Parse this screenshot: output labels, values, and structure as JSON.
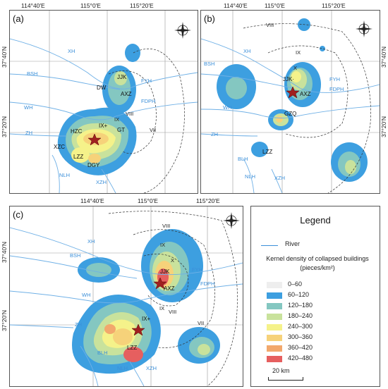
{
  "coordinates": {
    "lon": [
      "114°40′E",
      "115°0′E",
      "115°20′E"
    ],
    "lat": [
      "37°40′N",
      "37°20′N"
    ]
  },
  "panels": [
    {
      "label": "(a)"
    },
    {
      "label": "(b)"
    },
    {
      "label": "(c)"
    }
  ],
  "compass": {
    "n": "N",
    "s": "S",
    "e": "E",
    "w": "W"
  },
  "labels": {
    "towns": {
      "jjk": "JJK",
      "dw": "DW",
      "axz": "AXZ",
      "hzc": "HZC",
      "ix_plus": "IX+",
      "gt": "GT",
      "xzc": "XZC",
      "lzz": "LZZ",
      "dgy": "DGY",
      "gzq": "GZQ",
      "jjk_dot": "JJK·",
      "ix_plus_dot": "IX+"
    },
    "rivers": {
      "xh": "XH",
      "bsh": "BSH",
      "fyh": "FYH",
      "fdph": "FDPH",
      "wh": "WH",
      "zh": "ZH",
      "blh": "BLH",
      "nlh": "NLH",
      "xzh": "XZH"
    },
    "intensity": {
      "vii": "VII",
      "viii": "VIII",
      "ix": "IX",
      "x": "X"
    }
  },
  "legend": {
    "title": "Legend",
    "river": "River",
    "density_title": "Kernel density of collapsed buildings (pieces/km²)",
    "classes": [
      {
        "range": "0–60",
        "color": "#eeeeee"
      },
      {
        "range": "60–120",
        "color": "#3d9fe0"
      },
      {
        "range": "120–180",
        "color": "#84c7c1"
      },
      {
        "range": "180–240",
        "color": "#c9e29c"
      },
      {
        "range": "240–300",
        "color": "#f5f28a"
      },
      {
        "range": "300–360",
        "color": "#f6d27a"
      },
      {
        "range": "360–420",
        "color": "#f2a86c"
      },
      {
        "range": "420–480",
        "color": "#e65f5f"
      }
    ],
    "scale": "20 km"
  }
}
